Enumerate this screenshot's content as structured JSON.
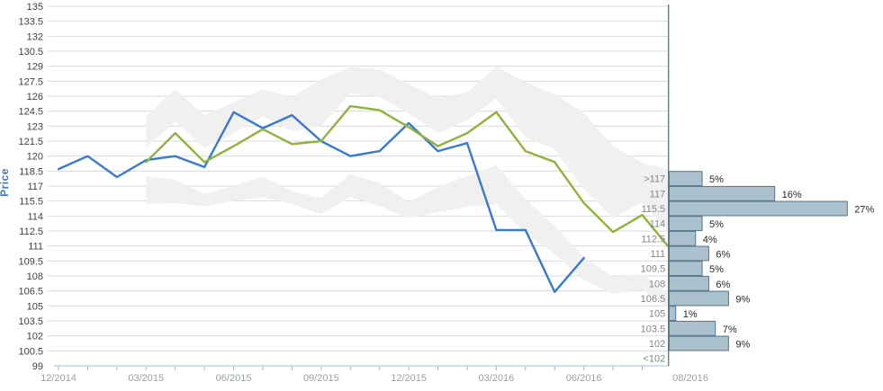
{
  "chart_data": {
    "type": "line",
    "title": "",
    "price_axis": {
      "label": "Price",
      "min": 99,
      "max": 135,
      "step": 1.5
    },
    "x_axis": {
      "months": [
        "12/2014",
        "01/2015",
        "02/2015",
        "03/2015",
        "04/2015",
        "05/2015",
        "06/2015",
        "07/2015",
        "08/2015",
        "09/2015",
        "10/2015",
        "11/2015",
        "12/2015",
        "01/2016",
        "02/2016",
        "03/2016",
        "04/2016",
        "05/2016",
        "06/2016",
        "07/2016",
        "08/2016",
        "09/2016"
      ],
      "quarter_tick_indices": [
        0,
        3,
        6,
        9,
        12,
        15,
        18
      ],
      "quarter_tick_labels": [
        "12/2014",
        "03/2015",
        "06/2015",
        "09/2015",
        "12/2015",
        "03/2016",
        "06/2016"
      ]
    },
    "series": [
      {
        "name": "price-history",
        "color": "#377ad0",
        "points": [
          [
            "12/2014",
            118.7
          ],
          [
            "01/2015",
            120.0
          ],
          [
            "02/2015",
            117.9
          ],
          [
            "03/2015",
            119.6
          ],
          [
            "04/2015",
            120.0
          ],
          [
            "05/2015",
            118.9
          ],
          [
            "06/2015",
            124.4
          ],
          [
            "07/2015",
            122.8
          ],
          [
            "08/2015",
            124.1
          ],
          [
            "09/2015",
            121.5
          ],
          [
            "10/2015",
            120.0
          ],
          [
            "11/2015",
            120.5
          ],
          [
            "12/2015",
            123.3
          ],
          [
            "01/2016",
            120.5
          ],
          [
            "02/2016",
            121.3
          ],
          [
            "03/2016",
            112.6
          ],
          [
            "04/2016",
            112.6
          ],
          [
            "05/2016",
            106.4
          ],
          [
            "06/2016",
            109.8
          ]
        ]
      },
      {
        "name": "price-forecast",
        "color": "#8fb33c",
        "points": [
          [
            "03/2015",
            119.4
          ],
          [
            "04/2015",
            122.3
          ],
          [
            "05/2015",
            119.4
          ],
          [
            "06/2015",
            121.0
          ],
          [
            "07/2015",
            122.7
          ],
          [
            "08/2015",
            121.2
          ],
          [
            "09/2015",
            121.5
          ],
          [
            "10/2015",
            125.0
          ],
          [
            "11/2015",
            124.6
          ],
          [
            "12/2015",
            122.9
          ],
          [
            "01/2016",
            121.0
          ],
          [
            "02/2016",
            122.3
          ],
          [
            "03/2016",
            124.4
          ],
          [
            "04/2016",
            120.5
          ],
          [
            "05/2016",
            119.4
          ],
          [
            "06/2016",
            115.3
          ],
          [
            "07/2016",
            112.4
          ],
          [
            "08/2016",
            114.1
          ],
          [
            "09/2016",
            111.0
          ]
        ]
      }
    ],
    "uncertainty_band": {
      "color": "#f0f0f0",
      "note": "point format: [date, outer_upper, inner_upper, inner_lower, outer_lower]",
      "points": [
        [
          "03/2015",
          124.0,
          120.8,
          118.0,
          115.2
        ],
        [
          "04/2015",
          126.7,
          123.5,
          117.6,
          115.3
        ],
        [
          "05/2015",
          124.1,
          120.8,
          116.2,
          115.0
        ],
        [
          "06/2015",
          125.4,
          122.3,
          117.0,
          115.5
        ],
        [
          "07/2015",
          126.7,
          124.0,
          117.9,
          115.9
        ],
        [
          "08/2015",
          125.9,
          122.5,
          116.5,
          115.2
        ],
        [
          "09/2015",
          127.7,
          123.0,
          115.8,
          114.2
        ],
        [
          "10/2015",
          128.9,
          126.3,
          118.2,
          115.9
        ],
        [
          "11/2015",
          128.7,
          125.9,
          117.3,
          115.0
        ],
        [
          "12/2015",
          127.2,
          124.3,
          115.4,
          113.8
        ],
        [
          "01/2016",
          125.8,
          122.3,
          116.9,
          114.4
        ],
        [
          "02/2016",
          126.4,
          123.6,
          118.0,
          114.9
        ],
        [
          "03/2016",
          129.0,
          125.8,
          119.1,
          115.2
        ],
        [
          "04/2016",
          127.4,
          121.9,
          115.7,
          112.3
        ],
        [
          "05/2016",
          126.2,
          120.7,
          113.0,
          110.2
        ],
        [
          "06/2016",
          124.3,
          116.7,
          109.9,
          107.6
        ],
        [
          "07/2016",
          121.0,
          113.8,
          107.9,
          106.2
        ],
        [
          "08/2016",
          119.3,
          115.4,
          108.2,
          106.6
        ],
        [
          "09/2016",
          118.7,
          112.4,
          106.3,
          104.8
        ]
      ]
    },
    "histogram": {
      "date_label": "08/2016",
      "bar_fill": "#abc2ce",
      "bar_border": "#547487",
      "rows": [
        [
          ">117",
          5,
          "5%"
        ],
        [
          "117",
          16,
          "16%"
        ],
        [
          "115.5",
          27,
          "27%"
        ],
        [
          "114",
          5,
          "5%"
        ],
        [
          "112.5",
          4,
          "4%"
        ],
        [
          "111",
          6,
          "6%"
        ],
        [
          "109.5",
          5,
          "5%"
        ],
        [
          "108",
          6,
          "6%"
        ],
        [
          "106.5",
          9,
          "9%"
        ],
        [
          "105",
          1,
          "1%"
        ],
        [
          "103.5",
          7,
          "7%"
        ],
        [
          "102",
          9,
          "9%"
        ],
        [
          "<102",
          0,
          ""
        ]
      ]
    },
    "colors": {
      "grid": "#d9d9d9",
      "baseline": "#b7cdd5",
      "tick": "#9fb8c2",
      "y_label": "#404040",
      "x_label": "#9aa1a7",
      "hist_axis": "#5c7380",
      "hist_row_label": "#828789",
      "hist_pct_label": "#26282a",
      "band": "#f0f0f0",
      "price_title": "#3577cf"
    }
  }
}
